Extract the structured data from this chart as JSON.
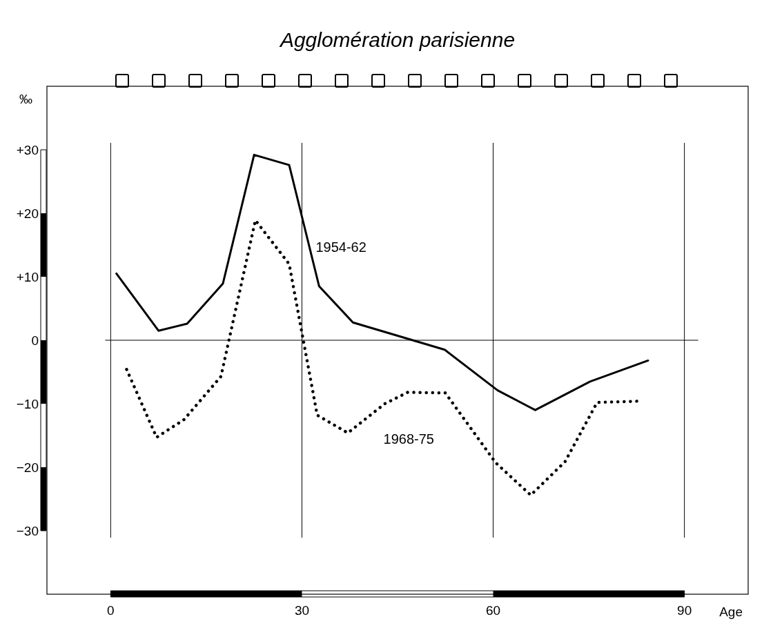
{
  "chart_data": {
    "type": "line",
    "title": "Agglomération parisienne",
    "xlabel": "Age",
    "ylabel": "‰",
    "xlim": [
      -10,
      100
    ],
    "ylim": [
      -40,
      40
    ],
    "xticks": [
      0,
      30,
      60,
      90
    ],
    "yticks": [
      {
        "value": 30,
        "label": "+30"
      },
      {
        "value": 20,
        "label": "+20"
      },
      {
        "value": 10,
        "label": "+10"
      },
      0,
      {
        "value": -10,
        "label": "−10"
      },
      {
        "value": -20,
        "label": "−20"
      },
      {
        "value": -30,
        "label": "−30"
      }
    ],
    "grid": "x",
    "ref_lines": [
      {
        "axis": "y",
        "value": 0,
        "color": "#000000"
      }
    ],
    "series": [
      {
        "name": "1954-62",
        "color": "#000000",
        "line_style": "solid",
        "x": [
          0.9,
          7.5,
          12,
          17.6,
          22.5,
          28,
          32.7,
          38,
          52.4,
          60.7,
          66.6,
          75.2,
          84.3
        ],
        "values": [
          10.5,
          1.5,
          2.6,
          8.9,
          29.2,
          27.6,
          8.5,
          2.8,
          -1.5,
          -7.9,
          -11,
          -6.5,
          -3.2
        ]
      },
      {
        "name": "1968-75",
        "color": "#000000",
        "line_style": "dotted",
        "x": [
          2.5,
          7.2,
          11.5,
          17.3,
          22.7,
          28,
          32.4,
          37.2,
          43,
          46.6,
          52.5,
          60.4,
          65.9,
          71.3,
          76.3,
          82.7
        ],
        "values": [
          -4.6,
          -15.3,
          -12.5,
          -5.7,
          18.9,
          12,
          -11.8,
          -14.6,
          -10,
          -8.2,
          -8.3,
          -19.3,
          -24.4,
          -19.1,
          -9.8,
          -9.6
        ]
      }
    ]
  }
}
